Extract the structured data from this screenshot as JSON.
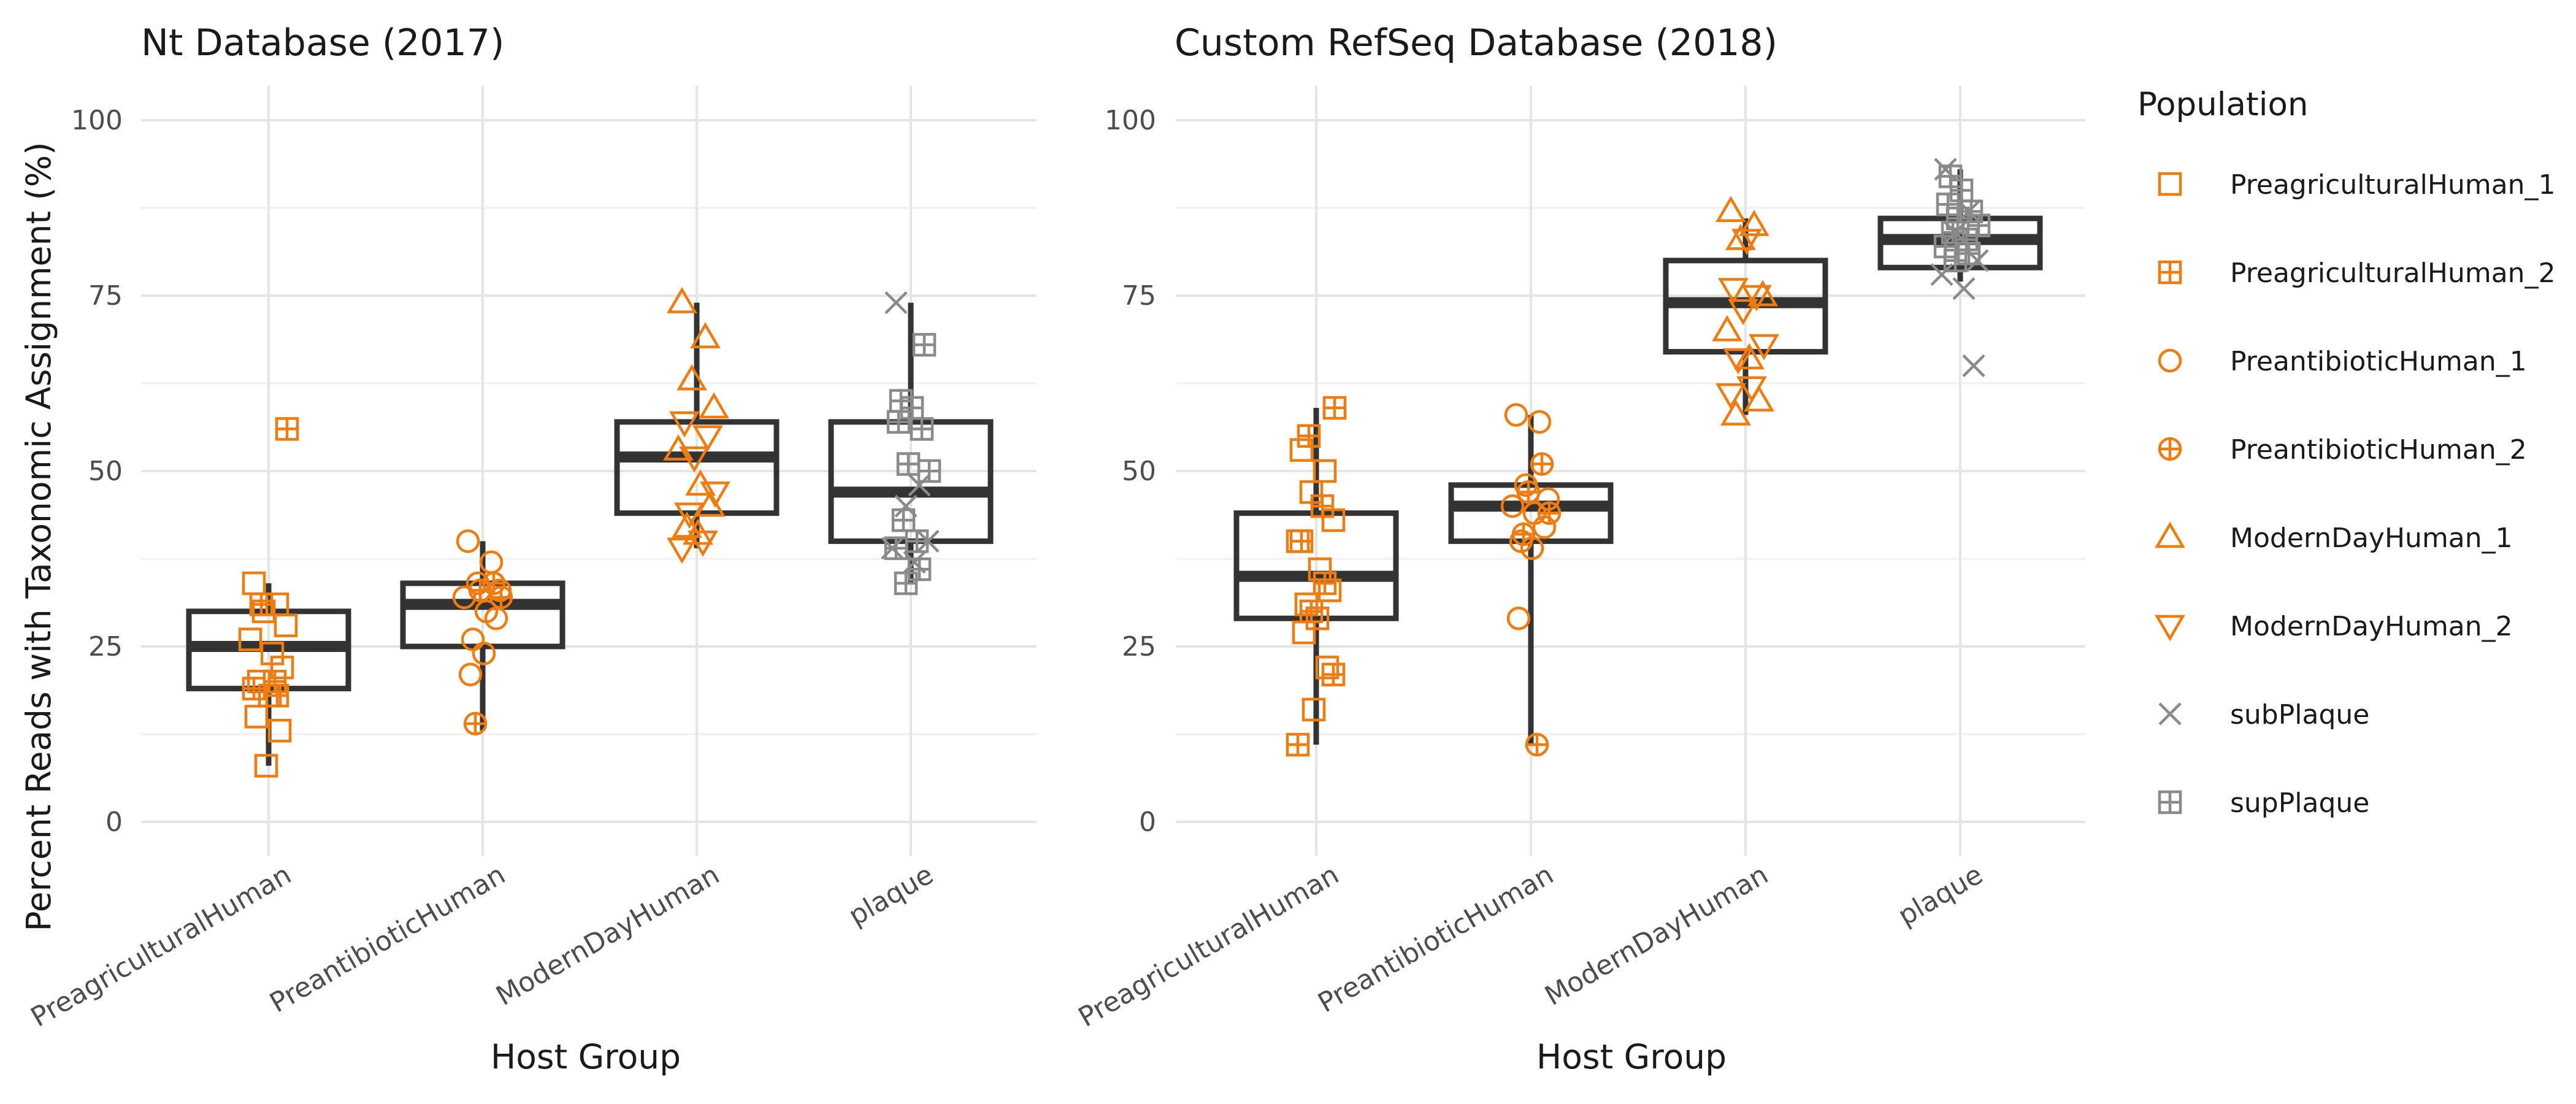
{
  "chart_data": {
    "type": "boxplot",
    "ylabel": "Percent Reads with Taxonomic Assignment (%)",
    "ylim": [
      0,
      100
    ],
    "yticks": [
      0,
      25,
      50,
      75,
      100
    ],
    "categories": [
      "PreagriculturalHuman",
      "PreantibioticHuman",
      "ModernDayHuman",
      "plaque"
    ],
    "legend": {
      "title": "Population",
      "position": "right",
      "entries": [
        {
          "label": "PreagriculturalHuman_1",
          "color": "#f07b0e",
          "shape": "square"
        },
        {
          "label": "PreagriculturalHuman_2",
          "color": "#f07b0e",
          "shape": "square-plus"
        },
        {
          "label": "PreantibioticHuman_1",
          "color": "#f07b0e",
          "shape": "circle"
        },
        {
          "label": "PreantibioticHuman_2",
          "color": "#f07b0e",
          "shape": "circle-plus"
        },
        {
          "label": "ModernDayHuman_1",
          "color": "#f07b0e",
          "shape": "triangle-up"
        },
        {
          "label": "ModernDayHuman_2",
          "color": "#f07b0e",
          "shape": "triangle-down"
        },
        {
          "label": "subPlaque",
          "color": "#8a8a8a",
          "shape": "cross"
        },
        {
          "label": "supPlaque",
          "color": "#8a8a8a",
          "shape": "square-plus"
        }
      ]
    },
    "panels": [
      {
        "title": "Nt Database (2017)",
        "xlabel": "Host Group",
        "boxes": [
          {
            "category": "PreagriculturalHuman",
            "whisker_low": 8,
            "q1": 19,
            "median": 25,
            "q3": 30,
            "whisker_high": 34,
            "points": [
              {
                "pop": "PreagriculturalHuman_1",
                "y": [
                  34,
                  31,
                  30,
                  28,
                  26,
                  24,
                  22,
                  20,
                  18,
                  15,
                  13,
                  8
                ]
              },
              {
                "pop": "PreagriculturalHuman_2",
                "y": [
                  56,
                  31,
                  20,
                  19,
                  18
                ]
              }
            ]
          },
          {
            "category": "PreantibioticHuman",
            "whisker_low": 13,
            "q1": 25,
            "median": 31,
            "q3": 34,
            "whisker_high": 40,
            "points": [
              {
                "pop": "PreantibioticHuman_1",
                "y": [
                  40,
                  37,
                  34,
                  33,
                  32,
                  30,
                  29,
                  26,
                  24,
                  21
                ]
              },
              {
                "pop": "PreantibioticHuman_2",
                "y": [
                  34,
                  33,
                  32,
                  14
                ]
              }
            ]
          },
          {
            "category": "ModernDayHuman",
            "whisker_low": 39,
            "q1": 44,
            "median": 52,
            "q3": 57,
            "whisker_high": 74,
            "points": [
              {
                "pop": "ModernDayHuman_1",
                "y": [
                  74,
                  69,
                  63,
                  59,
                  53,
                  48,
                  45,
                  42,
                  41
                ]
              },
              {
                "pop": "ModernDayHuman_2",
                "y": [
                  57,
                  55,
                  52,
                  47,
                  44,
                  40,
                  39
                ]
              }
            ]
          },
          {
            "category": "plaque",
            "whisker_low": 34,
            "q1": 40,
            "median": 47,
            "q3": 57,
            "whisker_high": 74,
            "points": [
              {
                "pop": "subPlaque",
                "y": [
                  74,
                  48,
                  45,
                  40,
                  39,
                  37
                ]
              },
              {
                "pop": "supPlaque",
                "y": [
                  68,
                  60,
                  59,
                  57,
                  56,
                  51,
                  50,
                  43,
                  40,
                  39,
                  36,
                  34
                ]
              }
            ]
          }
        ]
      },
      {
        "title": "Custom RefSeq Database (2018)",
        "xlabel": "Host Group",
        "boxes": [
          {
            "category": "PreagriculturalHuman",
            "whisker_low": 11,
            "q1": 29,
            "median": 35,
            "q3": 44,
            "whisker_high": 59,
            "points": [
              {
                "pop": "PreagriculturalHuman_1",
                "y": [
                  53,
                  50,
                  47,
                  43,
                  40,
                  36,
                  33,
                  31,
                  29,
                  27,
                  22,
                  16
                ]
              },
              {
                "pop": "PreagriculturalHuman_2",
                "y": [
                  59,
                  55,
                  45,
                  40,
                  34,
                  30,
                  21,
                  11
                ]
              }
            ]
          },
          {
            "category": "PreantibioticHuman",
            "whisker_low": 11,
            "q1": 40,
            "median": 45,
            "q3": 48,
            "whisker_high": 58,
            "points": [
              {
                "pop": "PreantibioticHuman_1",
                "y": [
                  58,
                  57,
                  48,
                  46,
                  45,
                  44,
                  42,
                  40,
                  39,
                  29
                ]
              },
              {
                "pop": "PreantibioticHuman_2",
                "y": [
                  51,
                  47,
                  44,
                  41,
                  11
                ]
              }
            ]
          },
          {
            "category": "ModernDayHuman",
            "whisker_low": 58,
            "q1": 67,
            "median": 74,
            "q3": 80,
            "whisker_high": 86,
            "points": [
              {
                "pop": "ModernDayHuman_1",
                "y": [
                  87,
                  85,
                  83,
                  75,
                  70,
                  66,
                  60,
                  58
                ]
              },
              {
                "pop": "ModernDayHuman_2",
                "y": [
                  83,
                  76,
                  75,
                  73,
                  68,
                  66,
                  62,
                  61
                ]
              }
            ]
          },
          {
            "category": "plaque",
            "whisker_low": 77,
            "q1": 79,
            "median": 83,
            "q3": 86,
            "whisker_high": 93,
            "points": [
              {
                "pop": "subPlaque",
                "y": [
                  93,
                  87,
                  84,
                  80,
                  78,
                  76,
                  65
                ]
              },
              {
                "pop": "supPlaque",
                "y": [
                  92,
                  90,
                  88,
                  87,
                  86,
                  85,
                  84,
                  83,
                  82,
                  81,
                  80
                ]
              }
            ]
          }
        ]
      }
    ]
  }
}
